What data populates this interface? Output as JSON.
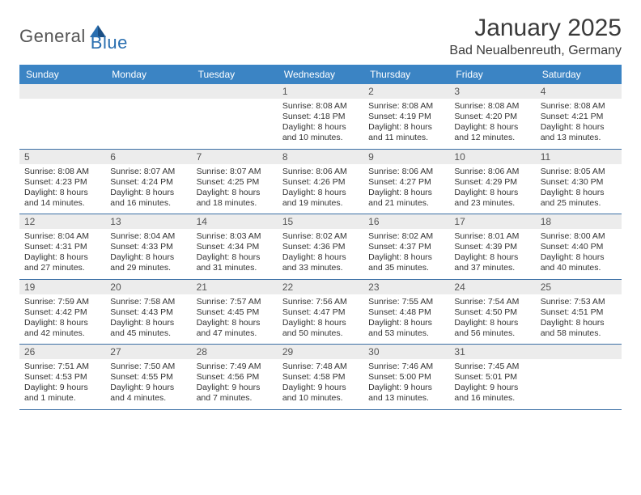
{
  "brand": {
    "general": "General",
    "blue": "Blue"
  },
  "title": {
    "month": "January 2025",
    "location": "Bad Neualbenreuth, Germany"
  },
  "colors": {
    "header_bg": "#3b84c4",
    "daynum_bg": "#ececec",
    "week_divider": "#3b6fa5",
    "brand_blue": "#2a6fb0"
  },
  "day_names": [
    "Sunday",
    "Monday",
    "Tuesday",
    "Wednesday",
    "Thursday",
    "Friday",
    "Saturday"
  ],
  "weeks": [
    [
      {
        "n": "",
        "l": [
          "",
          "",
          "",
          ""
        ]
      },
      {
        "n": "",
        "l": [
          "",
          "",
          "",
          ""
        ]
      },
      {
        "n": "",
        "l": [
          "",
          "",
          "",
          ""
        ]
      },
      {
        "n": "1",
        "l": [
          "Sunrise: 8:08 AM",
          "Sunset: 4:18 PM",
          "Daylight: 8 hours",
          "and 10 minutes."
        ]
      },
      {
        "n": "2",
        "l": [
          "Sunrise: 8:08 AM",
          "Sunset: 4:19 PM",
          "Daylight: 8 hours",
          "and 11 minutes."
        ]
      },
      {
        "n": "3",
        "l": [
          "Sunrise: 8:08 AM",
          "Sunset: 4:20 PM",
          "Daylight: 8 hours",
          "and 12 minutes."
        ]
      },
      {
        "n": "4",
        "l": [
          "Sunrise: 8:08 AM",
          "Sunset: 4:21 PM",
          "Daylight: 8 hours",
          "and 13 minutes."
        ]
      }
    ],
    [
      {
        "n": "5",
        "l": [
          "Sunrise: 8:08 AM",
          "Sunset: 4:23 PM",
          "Daylight: 8 hours",
          "and 14 minutes."
        ]
      },
      {
        "n": "6",
        "l": [
          "Sunrise: 8:07 AM",
          "Sunset: 4:24 PM",
          "Daylight: 8 hours",
          "and 16 minutes."
        ]
      },
      {
        "n": "7",
        "l": [
          "Sunrise: 8:07 AM",
          "Sunset: 4:25 PM",
          "Daylight: 8 hours",
          "and 18 minutes."
        ]
      },
      {
        "n": "8",
        "l": [
          "Sunrise: 8:06 AM",
          "Sunset: 4:26 PM",
          "Daylight: 8 hours",
          "and 19 minutes."
        ]
      },
      {
        "n": "9",
        "l": [
          "Sunrise: 8:06 AM",
          "Sunset: 4:27 PM",
          "Daylight: 8 hours",
          "and 21 minutes."
        ]
      },
      {
        "n": "10",
        "l": [
          "Sunrise: 8:06 AM",
          "Sunset: 4:29 PM",
          "Daylight: 8 hours",
          "and 23 minutes."
        ]
      },
      {
        "n": "11",
        "l": [
          "Sunrise: 8:05 AM",
          "Sunset: 4:30 PM",
          "Daylight: 8 hours",
          "and 25 minutes."
        ]
      }
    ],
    [
      {
        "n": "12",
        "l": [
          "Sunrise: 8:04 AM",
          "Sunset: 4:31 PM",
          "Daylight: 8 hours",
          "and 27 minutes."
        ]
      },
      {
        "n": "13",
        "l": [
          "Sunrise: 8:04 AM",
          "Sunset: 4:33 PM",
          "Daylight: 8 hours",
          "and 29 minutes."
        ]
      },
      {
        "n": "14",
        "l": [
          "Sunrise: 8:03 AM",
          "Sunset: 4:34 PM",
          "Daylight: 8 hours",
          "and 31 minutes."
        ]
      },
      {
        "n": "15",
        "l": [
          "Sunrise: 8:02 AM",
          "Sunset: 4:36 PM",
          "Daylight: 8 hours",
          "and 33 minutes."
        ]
      },
      {
        "n": "16",
        "l": [
          "Sunrise: 8:02 AM",
          "Sunset: 4:37 PM",
          "Daylight: 8 hours",
          "and 35 minutes."
        ]
      },
      {
        "n": "17",
        "l": [
          "Sunrise: 8:01 AM",
          "Sunset: 4:39 PM",
          "Daylight: 8 hours",
          "and 37 minutes."
        ]
      },
      {
        "n": "18",
        "l": [
          "Sunrise: 8:00 AM",
          "Sunset: 4:40 PM",
          "Daylight: 8 hours",
          "and 40 minutes."
        ]
      }
    ],
    [
      {
        "n": "19",
        "l": [
          "Sunrise: 7:59 AM",
          "Sunset: 4:42 PM",
          "Daylight: 8 hours",
          "and 42 minutes."
        ]
      },
      {
        "n": "20",
        "l": [
          "Sunrise: 7:58 AM",
          "Sunset: 4:43 PM",
          "Daylight: 8 hours",
          "and 45 minutes."
        ]
      },
      {
        "n": "21",
        "l": [
          "Sunrise: 7:57 AM",
          "Sunset: 4:45 PM",
          "Daylight: 8 hours",
          "and 47 minutes."
        ]
      },
      {
        "n": "22",
        "l": [
          "Sunrise: 7:56 AM",
          "Sunset: 4:47 PM",
          "Daylight: 8 hours",
          "and 50 minutes."
        ]
      },
      {
        "n": "23",
        "l": [
          "Sunrise: 7:55 AM",
          "Sunset: 4:48 PM",
          "Daylight: 8 hours",
          "and 53 minutes."
        ]
      },
      {
        "n": "24",
        "l": [
          "Sunrise: 7:54 AM",
          "Sunset: 4:50 PM",
          "Daylight: 8 hours",
          "and 56 minutes."
        ]
      },
      {
        "n": "25",
        "l": [
          "Sunrise: 7:53 AM",
          "Sunset: 4:51 PM",
          "Daylight: 8 hours",
          "and 58 minutes."
        ]
      }
    ],
    [
      {
        "n": "26",
        "l": [
          "Sunrise: 7:51 AM",
          "Sunset: 4:53 PM",
          "Daylight: 9 hours",
          "and 1 minute."
        ]
      },
      {
        "n": "27",
        "l": [
          "Sunrise: 7:50 AM",
          "Sunset: 4:55 PM",
          "Daylight: 9 hours",
          "and 4 minutes."
        ]
      },
      {
        "n": "28",
        "l": [
          "Sunrise: 7:49 AM",
          "Sunset: 4:56 PM",
          "Daylight: 9 hours",
          "and 7 minutes."
        ]
      },
      {
        "n": "29",
        "l": [
          "Sunrise: 7:48 AM",
          "Sunset: 4:58 PM",
          "Daylight: 9 hours",
          "and 10 minutes."
        ]
      },
      {
        "n": "30",
        "l": [
          "Sunrise: 7:46 AM",
          "Sunset: 5:00 PM",
          "Daylight: 9 hours",
          "and 13 minutes."
        ]
      },
      {
        "n": "31",
        "l": [
          "Sunrise: 7:45 AM",
          "Sunset: 5:01 PM",
          "Daylight: 9 hours",
          "and 16 minutes."
        ]
      },
      {
        "n": "",
        "l": [
          "",
          "",
          "",
          ""
        ]
      }
    ]
  ]
}
